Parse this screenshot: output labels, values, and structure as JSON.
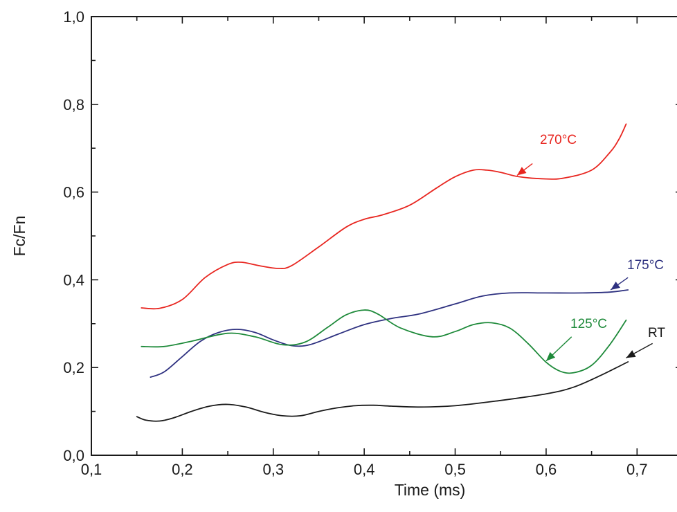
{
  "chart_data": {
    "type": "line",
    "title": "",
    "xlabel": "Time (ms)",
    "ylabel": "Fc/Fn",
    "xlim": [
      0.1,
      0.75
    ],
    "ylim": [
      0.0,
      1.0
    ],
    "x_ticks": [
      0.1,
      0.2,
      0.3,
      0.4,
      0.5,
      0.6,
      0.7
    ],
    "x_tick_labels": [
      "0,1",
      "0,2",
      "0,3",
      "0,4",
      "0,5",
      "0,6",
      "0,7"
    ],
    "y_ticks": [
      0.0,
      0.2,
      0.4,
      0.6,
      0.8,
      1.0
    ],
    "y_tick_labels": [
      "0,0",
      "0,2",
      "0,4",
      "0,6",
      "0,8",
      "1,0"
    ],
    "grid": false,
    "legend": "none (series labeled directly with arrows)",
    "series": [
      {
        "name": "270°C",
        "color": "#e8251f",
        "x": [
          0.155,
          0.175,
          0.2,
          0.225,
          0.25,
          0.265,
          0.285,
          0.305,
          0.32,
          0.35,
          0.38,
          0.4,
          0.42,
          0.45,
          0.48,
          0.5,
          0.52,
          0.535,
          0.55,
          0.57,
          0.6,
          0.62,
          0.65,
          0.67,
          0.68,
          0.688
        ],
        "values": [
          0.336,
          0.335,
          0.355,
          0.405,
          0.435,
          0.44,
          0.432,
          0.426,
          0.432,
          0.475,
          0.52,
          0.538,
          0.548,
          0.57,
          0.61,
          0.635,
          0.65,
          0.65,
          0.645,
          0.635,
          0.63,
          0.632,
          0.65,
          0.69,
          0.72,
          0.755
        ]
      },
      {
        "name": "175°C",
        "color": "#2e3180",
        "x": [
          0.165,
          0.18,
          0.2,
          0.22,
          0.24,
          0.26,
          0.28,
          0.3,
          0.32,
          0.34,
          0.37,
          0.4,
          0.43,
          0.46,
          0.5,
          0.53,
          0.56,
          0.6,
          0.64,
          0.67,
          0.69
        ],
        "values": [
          0.178,
          0.19,
          0.225,
          0.26,
          0.28,
          0.287,
          0.28,
          0.263,
          0.25,
          0.252,
          0.275,
          0.298,
          0.312,
          0.322,
          0.345,
          0.363,
          0.37,
          0.37,
          0.37,
          0.372,
          0.377
        ]
      },
      {
        "name": "125°C",
        "color": "#1e8a3a",
        "x": [
          0.155,
          0.18,
          0.21,
          0.25,
          0.28,
          0.31,
          0.335,
          0.36,
          0.38,
          0.4,
          0.415,
          0.44,
          0.475,
          0.5,
          0.52,
          0.54,
          0.56,
          0.58,
          0.6,
          0.615,
          0.63,
          0.65,
          0.67,
          0.688
        ],
        "values": [
          0.248,
          0.248,
          0.26,
          0.278,
          0.27,
          0.252,
          0.258,
          0.292,
          0.32,
          0.331,
          0.322,
          0.29,
          0.27,
          0.282,
          0.298,
          0.302,
          0.29,
          0.255,
          0.212,
          0.192,
          0.188,
          0.205,
          0.252,
          0.308
        ]
      },
      {
        "name": "RT",
        "color": "#1a1a1a",
        "x": [
          0.15,
          0.16,
          0.175,
          0.19,
          0.21,
          0.23,
          0.25,
          0.27,
          0.29,
          0.31,
          0.33,
          0.35,
          0.37,
          0.39,
          0.41,
          0.43,
          0.46,
          0.5,
          0.55,
          0.6,
          0.63,
          0.66,
          0.69
        ],
        "values": [
          0.088,
          0.08,
          0.078,
          0.085,
          0.1,
          0.112,
          0.116,
          0.11,
          0.098,
          0.09,
          0.09,
          0.1,
          0.108,
          0.113,
          0.114,
          0.112,
          0.11,
          0.113,
          0.125,
          0.14,
          0.155,
          0.182,
          0.213
        ]
      }
    ],
    "annotations": [
      {
        "text": "270°C",
        "color": "#e8251f",
        "series": "270°C",
        "arrow_from": [
          0.585,
          0.665
        ],
        "arrow_to": [
          0.568,
          0.638
        ]
      },
      {
        "text": "175°C",
        "color": "#2e3180",
        "series": "175°C",
        "arrow_from": [
          0.69,
          0.405
        ],
        "arrow_to": [
          0.671,
          0.377
        ]
      },
      {
        "text": "125°C",
        "color": "#1e8a3a",
        "series": "125°C",
        "arrow_from": [
          0.628,
          0.27
        ],
        "arrow_to": [
          0.6,
          0.215
        ]
      },
      {
        "text": "RT",
        "color": "#1a1a1a",
        "series": "RT",
        "arrow_from": [
          0.717,
          0.255
        ],
        "arrow_to": [
          0.688,
          0.222
        ]
      }
    ]
  }
}
